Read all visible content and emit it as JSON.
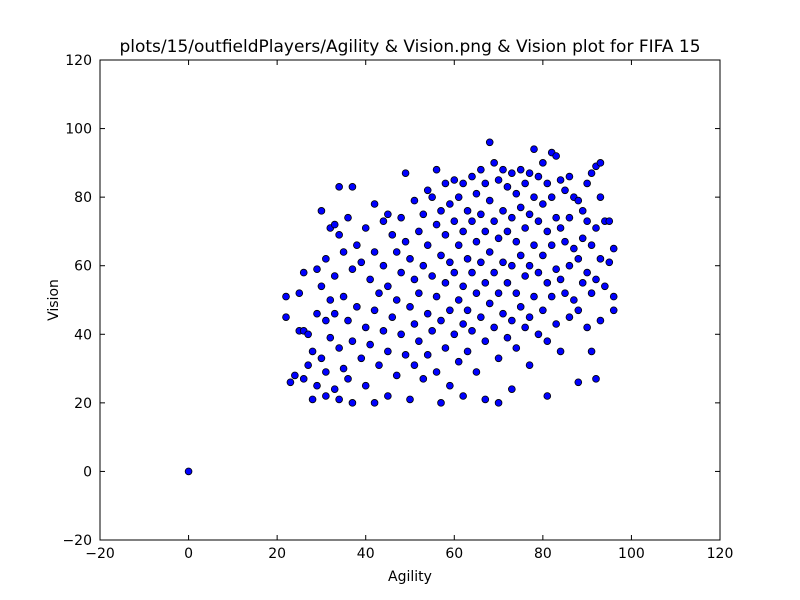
{
  "chart_data": {
    "type": "scatter",
    "title": "plots/15/outfieldPlayers/Agility & Vision.png & Vision plot for FIFA 15",
    "xlabel": "Agility",
    "ylabel": "Vision",
    "xlim": [
      -20,
      120
    ],
    "ylim": [
      -20,
      120
    ],
    "xticks": [
      -20,
      0,
      20,
      40,
      60,
      80,
      100,
      120
    ],
    "yticks": [
      -20,
      0,
      20,
      40,
      60,
      80,
      100,
      120
    ],
    "x_tick_labels": [
      "−20",
      "0",
      "20",
      "40",
      "60",
      "80",
      "100",
      "120"
    ],
    "y_tick_labels": [
      "−20",
      "0",
      "20",
      "40",
      "60",
      "80",
      "100",
      "120"
    ],
    "grid": false,
    "marker_color": "#0000ff",
    "marker_edge_color": "#000000",
    "points": [
      [
        0,
        0
      ],
      [
        22,
        51
      ],
      [
        22,
        45
      ],
      [
        23,
        26
      ],
      [
        24,
        28
      ],
      [
        25,
        52
      ],
      [
        25,
        41
      ],
      [
        26,
        41
      ],
      [
        26,
        58
      ],
      [
        26,
        27
      ],
      [
        27,
        31
      ],
      [
        27,
        40
      ],
      [
        28,
        21
      ],
      [
        28,
        35
      ],
      [
        29,
        25
      ],
      [
        29,
        46
      ],
      [
        29,
        59
      ],
      [
        30,
        76
      ],
      [
        30,
        33
      ],
      [
        30,
        54
      ],
      [
        31,
        22
      ],
      [
        31,
        62
      ],
      [
        31,
        44
      ],
      [
        31,
        29
      ],
      [
        32,
        71
      ],
      [
        32,
        50
      ],
      [
        32,
        39
      ],
      [
        33,
        72
      ],
      [
        33,
        24
      ],
      [
        33,
        57
      ],
      [
        33,
        46
      ],
      [
        34,
        83
      ],
      [
        34,
        69
      ],
      [
        34,
        36
      ],
      [
        34,
        21
      ],
      [
        35,
        64
      ],
      [
        35,
        51
      ],
      [
        35,
        30
      ],
      [
        36,
        74
      ],
      [
        36,
        44
      ],
      [
        36,
        27
      ],
      [
        37,
        83
      ],
      [
        37,
        59
      ],
      [
        37,
        38
      ],
      [
        37,
        20
      ],
      [
        38,
        66
      ],
      [
        38,
        48
      ],
      [
        39,
        61
      ],
      [
        39,
        33
      ],
      [
        40,
        71
      ],
      [
        40,
        42
      ],
      [
        40,
        25
      ],
      [
        41,
        56
      ],
      [
        41,
        37
      ],
      [
        42,
        78
      ],
      [
        42,
        64
      ],
      [
        42,
        47
      ],
      [
        42,
        20
      ],
      [
        43,
        52
      ],
      [
        43,
        31
      ],
      [
        44,
        73
      ],
      [
        44,
        60
      ],
      [
        44,
        41
      ],
      [
        45,
        75
      ],
      [
        45,
        54
      ],
      [
        45,
        35
      ],
      [
        45,
        22
      ],
      [
        46,
        69
      ],
      [
        46,
        45
      ],
      [
        47,
        64
      ],
      [
        47,
        50
      ],
      [
        47,
        28
      ],
      [
        48,
        74
      ],
      [
        48,
        58
      ],
      [
        48,
        40
      ],
      [
        49,
        87
      ],
      [
        49,
        67
      ],
      [
        49,
        34
      ],
      [
        50,
        62
      ],
      [
        50,
        48
      ],
      [
        50,
        21
      ],
      [
        51,
        79
      ],
      [
        51,
        56
      ],
      [
        51,
        43
      ],
      [
        51,
        31
      ],
      [
        52,
        70
      ],
      [
        52,
        52
      ],
      [
        52,
        38
      ],
      [
        53,
        75
      ],
      [
        53,
        60
      ],
      [
        53,
        27
      ],
      [
        54,
        82
      ],
      [
        54,
        66
      ],
      [
        54,
        46
      ],
      [
        54,
        34
      ],
      [
        55,
        80
      ],
      [
        55,
        57
      ],
      [
        55,
        41
      ],
      [
        56,
        88
      ],
      [
        56,
        72
      ],
      [
        56,
        51
      ],
      [
        56,
        29
      ],
      [
        57,
        76
      ],
      [
        57,
        63
      ],
      [
        57,
        44
      ],
      [
        57,
        20
      ],
      [
        58,
        84
      ],
      [
        58,
        69
      ],
      [
        58,
        55
      ],
      [
        58,
        36
      ],
      [
        59,
        78
      ],
      [
        59,
        61
      ],
      [
        59,
        47
      ],
      [
        59,
        25
      ],
      [
        60,
        85
      ],
      [
        60,
        73
      ],
      [
        60,
        58
      ],
      [
        60,
        40
      ],
      [
        61,
        80
      ],
      [
        61,
        66
      ],
      [
        61,
        50
      ],
      [
        61,
        32
      ],
      [
        62,
        84
      ],
      [
        62,
        70
      ],
      [
        62,
        54
      ],
      [
        62,
        43
      ],
      [
        62,
        22
      ],
      [
        63,
        76
      ],
      [
        63,
        62
      ],
      [
        63,
        47
      ],
      [
        63,
        35
      ],
      [
        64,
        86
      ],
      [
        64,
        73
      ],
      [
        64,
        58
      ],
      [
        64,
        41
      ],
      [
        65,
        81
      ],
      [
        65,
        67
      ],
      [
        65,
        52
      ],
      [
        65,
        29
      ],
      [
        66,
        88
      ],
      [
        66,
        75
      ],
      [
        66,
        61
      ],
      [
        66,
        45
      ],
      [
        67,
        84
      ],
      [
        67,
        70
      ],
      [
        67,
        55
      ],
      [
        67,
        38
      ],
      [
        67,
        21
      ],
      [
        68,
        96
      ],
      [
        68,
        79
      ],
      [
        68,
        64
      ],
      [
        68,
        49
      ],
      [
        69,
        90
      ],
      [
        69,
        73
      ],
      [
        69,
        58
      ],
      [
        69,
        42
      ],
      [
        70,
        85
      ],
      [
        70,
        68
      ],
      [
        70,
        52
      ],
      [
        70,
        33
      ],
      [
        70,
        20
      ],
      [
        71,
        88
      ],
      [
        71,
        76
      ],
      [
        71,
        61
      ],
      [
        71,
        46
      ],
      [
        72,
        83
      ],
      [
        72,
        70
      ],
      [
        72,
        55
      ],
      [
        72,
        39
      ],
      [
        73,
        87
      ],
      [
        73,
        74
      ],
      [
        73,
        60
      ],
      [
        73,
        44
      ],
      [
        73,
        24
      ],
      [
        74,
        81
      ],
      [
        74,
        67
      ],
      [
        74,
        52
      ],
      [
        74,
        36
      ],
      [
        75,
        88
      ],
      [
        75,
        77
      ],
      [
        75,
        63
      ],
      [
        75,
        48
      ],
      [
        76,
        84
      ],
      [
        76,
        71
      ],
      [
        76,
        57
      ],
      [
        76,
        42
      ],
      [
        77,
        87
      ],
      [
        77,
        75
      ],
      [
        77,
        60
      ],
      [
        77,
        45
      ],
      [
        77,
        31
      ],
      [
        78,
        94
      ],
      [
        78,
        80
      ],
      [
        78,
        66
      ],
      [
        78,
        51
      ],
      [
        79,
        86
      ],
      [
        79,
        73
      ],
      [
        79,
        58
      ],
      [
        79,
        40
      ],
      [
        80,
        90
      ],
      [
        80,
        78
      ],
      [
        80,
        63
      ],
      [
        80,
        47
      ],
      [
        81,
        84
      ],
      [
        81,
        70
      ],
      [
        81,
        55
      ],
      [
        81,
        38
      ],
      [
        81,
        22
      ],
      [
        82,
        93
      ],
      [
        82,
        80
      ],
      [
        82,
        66
      ],
      [
        82,
        51
      ],
      [
        83,
        92
      ],
      [
        83,
        74
      ],
      [
        83,
        59
      ],
      [
        83,
        43
      ],
      [
        84,
        85
      ],
      [
        84,
        71
      ],
      [
        84,
        56
      ],
      [
        84,
        35
      ],
      [
        85,
        82
      ],
      [
        85,
        67
      ],
      [
        85,
        52
      ],
      [
        86,
        86
      ],
      [
        86,
        74
      ],
      [
        86,
        60
      ],
      [
        86,
        45
      ],
      [
        87,
        80
      ],
      [
        87,
        65
      ],
      [
        87,
        50
      ],
      [
        88,
        79
      ],
      [
        88,
        62
      ],
      [
        88,
        47
      ],
      [
        88,
        26
      ],
      [
        89,
        76
      ],
      [
        89,
        68
      ],
      [
        89,
        55
      ],
      [
        90,
        84
      ],
      [
        90,
        73
      ],
      [
        90,
        58
      ],
      [
        90,
        42
      ],
      [
        91,
        87
      ],
      [
        91,
        66
      ],
      [
        91,
        52
      ],
      [
        91,
        35
      ],
      [
        92,
        89
      ],
      [
        92,
        71
      ],
      [
        92,
        56
      ],
      [
        92,
        27
      ],
      [
        93,
        90
      ],
      [
        93,
        80
      ],
      [
        93,
        62
      ],
      [
        93,
        44
      ],
      [
        94,
        73
      ],
      [
        94,
        54
      ],
      [
        95,
        73
      ],
      [
        95,
        61
      ],
      [
        96,
        65
      ],
      [
        96,
        51
      ],
      [
        96,
        47
      ]
    ]
  }
}
